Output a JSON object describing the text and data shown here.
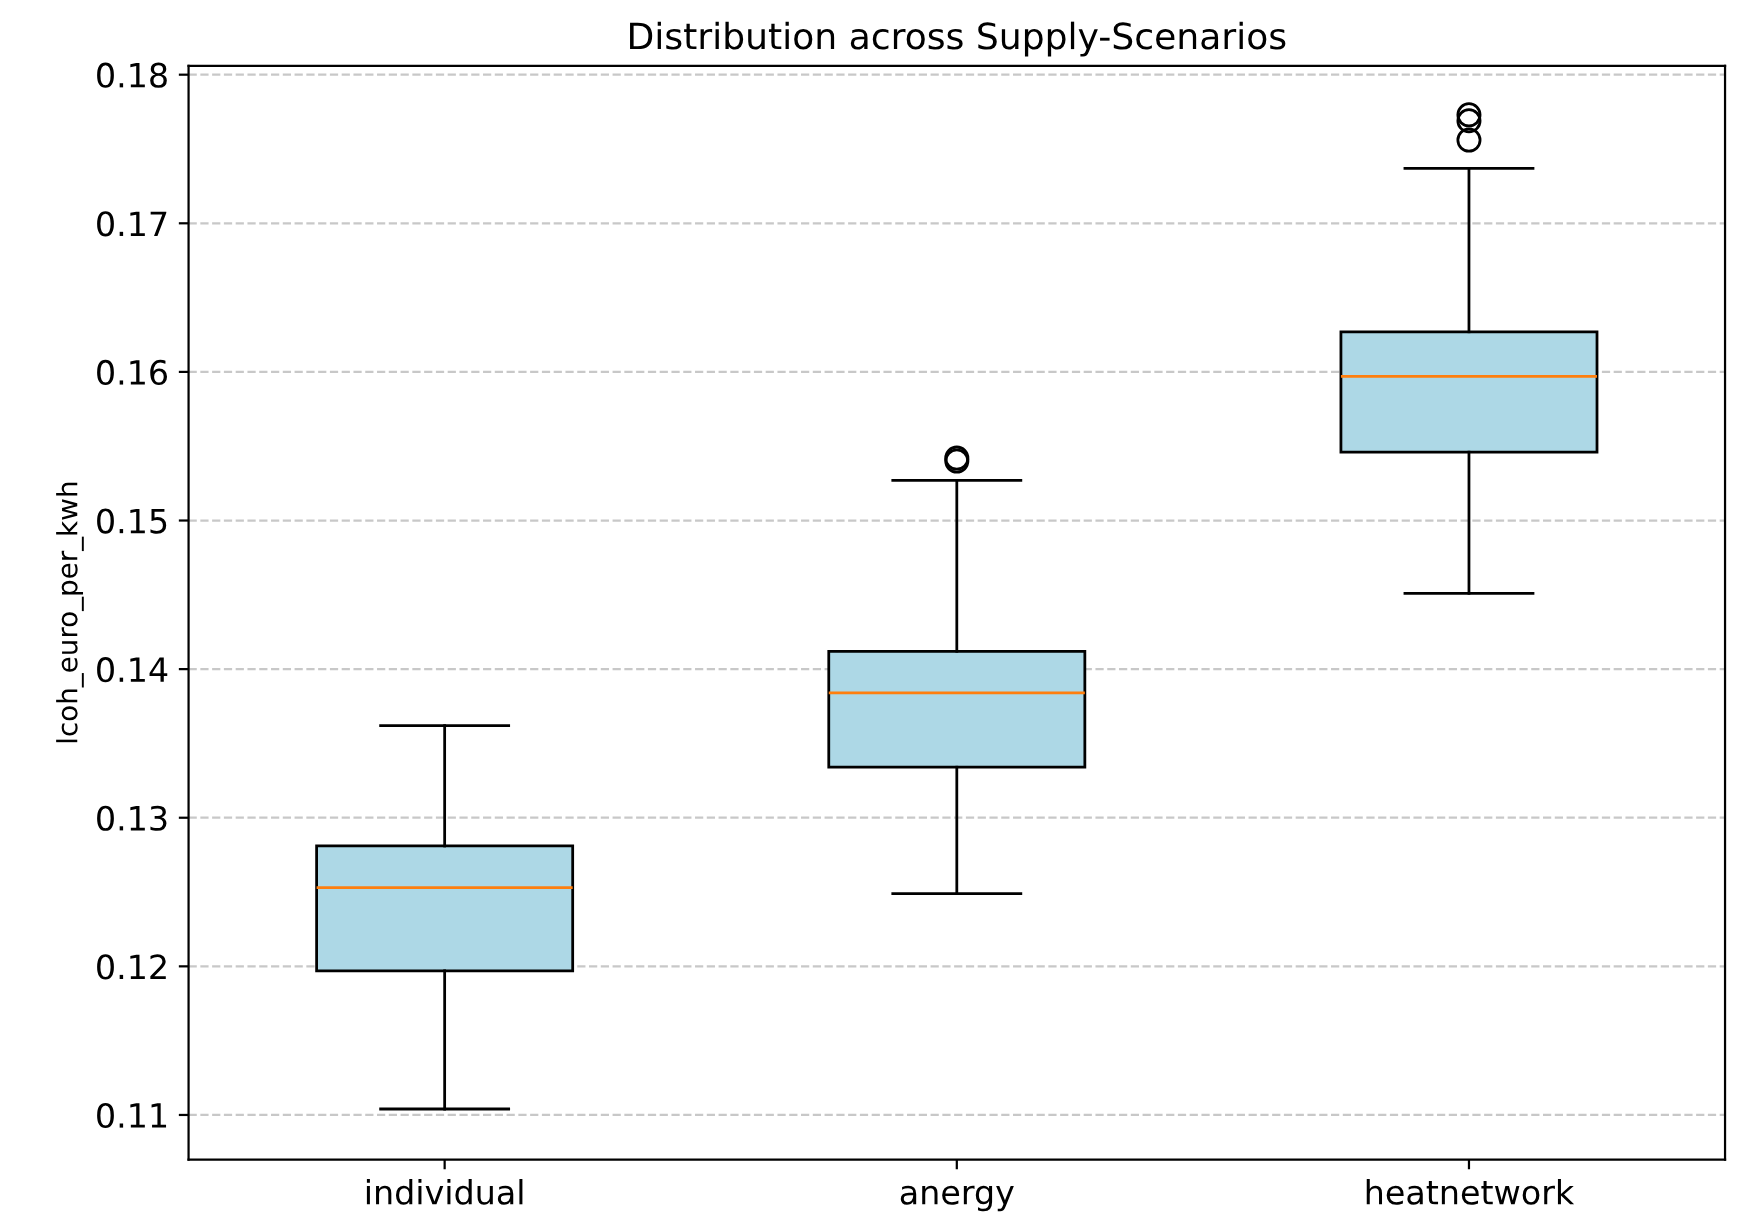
{
  "chart_data": {
    "type": "box",
    "title": "Distribution across Supply-Scenarios",
    "ylabel": "lcoh_euro_per_kwh",
    "categories": [
      "individual",
      "anergy",
      "heatnetwork"
    ],
    "boxes": [
      {
        "low": 0.1104,
        "q1": 0.1197,
        "median": 0.1253,
        "q3": 0.1281,
        "high": 0.1362
      },
      {
        "low": 0.1249,
        "q1": 0.1334,
        "median": 0.1384,
        "q3": 0.1412,
        "high": 0.1527,
        "outliers": [
          0.154,
          0.1542
        ]
      },
      {
        "low": 0.1451,
        "q1": 0.1546,
        "median": 0.1597,
        "q3": 0.1627,
        "high": 0.1737,
        "outliers": [
          0.1756,
          0.1769,
          0.1773
        ]
      }
    ],
    "color": "#add8e6",
    "ylim": [
      0.107,
      0.1806
    ],
    "yticks": [
      {
        "value": 0.11,
        "label": "0.11"
      },
      {
        "value": 0.12,
        "label": "0.12"
      },
      {
        "value": 0.13,
        "label": "0.13"
      },
      {
        "value": 0.14,
        "label": "0.14"
      },
      {
        "value": 0.15,
        "label": "0.15"
      },
      {
        "value": 0.16,
        "label": "0.16"
      },
      {
        "value": 0.17,
        "label": "0.17"
      },
      {
        "value": 0.18,
        "label": "0.18"
      }
    ],
    "grid": "y",
    "line_style": "dashed"
  }
}
